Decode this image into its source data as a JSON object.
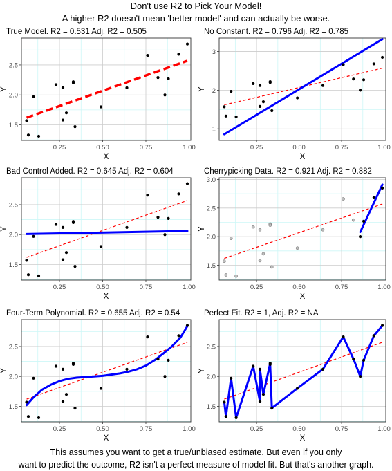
{
  "page": {
    "title_line1": "Don't use R2 to Pick Your Model!",
    "title_line2": "A higher R2 doesn't mean 'better model' and can actually be worse.",
    "caption_line1": "This assumes you want to get a true/unbiased estimate. But even if you only",
    "caption_line2": "want to predict the outcome, R2 isn't a perfect measure of model fit. But that's another graph."
  },
  "colors": {
    "fit_line": "#0000ff",
    "true_line": "#ff0000",
    "points": "#000000",
    "panel_border": "#333333",
    "grid_major": "#cccccc",
    "grid_minor": "#cdf7f7"
  },
  "chart_data": [
    {
      "type": "scatter",
      "title": "True Model. R2 = 0.531 Adj. R2 = 0.505",
      "xlabel": "X",
      "ylabel": "Y",
      "xlim": [
        0.03,
        1.01
      ],
      "ylim": [
        1.24,
        2.95
      ],
      "xticks": [
        "0.25",
        "0.50",
        "0.75",
        "1.00"
      ],
      "yticks": [
        "1.5",
        "2.0",
        "2.5"
      ],
      "points": [
        [
          0.06,
          1.57
        ],
        [
          0.07,
          1.33
        ],
        [
          0.1,
          1.97
        ],
        [
          0.13,
          1.31
        ],
        [
          0.23,
          2.17
        ],
        [
          0.27,
          1.58
        ],
        [
          0.27,
          2.12
        ],
        [
          0.29,
          1.7
        ],
        [
          0.33,
          2.22
        ],
        [
          0.33,
          2.2
        ],
        [
          0.34,
          1.47
        ],
        [
          0.49,
          1.8
        ],
        [
          0.64,
          2.12
        ],
        [
          0.76,
          2.66
        ],
        [
          0.82,
          2.29
        ],
        [
          0.86,
          2.0
        ],
        [
          0.88,
          2.27
        ],
        [
          0.94,
          2.68
        ],
        [
          0.99,
          2.85
        ]
      ],
      "true_line": [
        [
          0.06,
          1.62
        ],
        [
          0.99,
          2.57
        ]
      ],
      "true_style": "thick-dashed",
      "fit_line": []
    },
    {
      "type": "scatter",
      "title": "No Constant. R2 = 0.796 Adj. R2 = 0.785",
      "xlabel": "X",
      "ylabel": "Y",
      "xlim": [
        0.03,
        1.01
      ],
      "ylim": [
        0.7,
        3.35
      ],
      "xticks": [
        "0.25",
        "0.50",
        "0.75",
        "1.00"
      ],
      "yticks": [
        "1",
        "2",
        "3"
      ],
      "points": [
        [
          0.06,
          1.57
        ],
        [
          0.07,
          1.33
        ],
        [
          0.1,
          1.97
        ],
        [
          0.13,
          1.31
        ],
        [
          0.23,
          2.17
        ],
        [
          0.27,
          1.58
        ],
        [
          0.27,
          2.12
        ],
        [
          0.29,
          1.7
        ],
        [
          0.33,
          2.22
        ],
        [
          0.33,
          2.2
        ],
        [
          0.34,
          1.47
        ],
        [
          0.49,
          1.8
        ],
        [
          0.64,
          2.12
        ],
        [
          0.76,
          2.66
        ],
        [
          0.82,
          2.29
        ],
        [
          0.86,
          2.0
        ],
        [
          0.88,
          2.27
        ],
        [
          0.94,
          2.68
        ],
        [
          0.99,
          2.85
        ]
      ],
      "true_line": [
        [
          0.06,
          1.62
        ],
        [
          0.99,
          2.57
        ]
      ],
      "true_style": "dashed",
      "fit_line": [
        [
          0.06,
          0.86
        ],
        [
          0.99,
          3.32
        ]
      ]
    },
    {
      "type": "scatter",
      "title": "Bad Control Added. R2 = 0.645 Adj. R2 = 0.604",
      "xlabel": "X",
      "ylabel": "Y",
      "xlim": [
        0.03,
        1.01
      ],
      "ylim": [
        1.24,
        2.95
      ],
      "xticks": [
        "0.25",
        "0.50",
        "0.75",
        "1.00"
      ],
      "yticks": [
        "1.5",
        "2.0",
        "2.5"
      ],
      "points": [
        [
          0.06,
          1.57
        ],
        [
          0.07,
          1.33
        ],
        [
          0.1,
          1.97
        ],
        [
          0.13,
          1.31
        ],
        [
          0.23,
          2.17
        ],
        [
          0.27,
          1.58
        ],
        [
          0.27,
          2.12
        ],
        [
          0.29,
          1.7
        ],
        [
          0.33,
          2.22
        ],
        [
          0.33,
          2.2
        ],
        [
          0.34,
          1.47
        ],
        [
          0.49,
          1.8
        ],
        [
          0.64,
          2.12
        ],
        [
          0.76,
          2.66
        ],
        [
          0.82,
          2.29
        ],
        [
          0.86,
          2.0
        ],
        [
          0.88,
          2.27
        ],
        [
          0.94,
          2.68
        ],
        [
          0.99,
          2.85
        ]
      ],
      "true_line": [
        [
          0.06,
          1.62
        ],
        [
          0.99,
          2.57
        ]
      ],
      "true_style": "dashed",
      "fit_line": [
        [
          0.06,
          2.01
        ],
        [
          0.99,
          2.06
        ]
      ]
    },
    {
      "type": "scatter",
      "title": "Cherrypicking Data. R2 = 0.921 Adj. R2 = 0.882",
      "xlabel": "X",
      "ylabel": "Y",
      "xlim": [
        0.03,
        1.01
      ],
      "ylim": [
        1.24,
        3.03
      ],
      "xticks": [
        "0.25",
        "0.50",
        "0.75",
        "1.00"
      ],
      "yticks": [
        "1.5",
        "2.0",
        "2.5",
        "3.0"
      ],
      "faded_points": true,
      "highlight_points": [
        [
          0.86,
          2.0
        ],
        [
          0.88,
          2.27
        ],
        [
          0.94,
          2.68
        ],
        [
          0.99,
          2.85
        ]
      ],
      "points": [
        [
          0.06,
          1.57
        ],
        [
          0.07,
          1.33
        ],
        [
          0.1,
          1.97
        ],
        [
          0.13,
          1.31
        ],
        [
          0.23,
          2.17
        ],
        [
          0.27,
          1.58
        ],
        [
          0.27,
          2.12
        ],
        [
          0.29,
          1.7
        ],
        [
          0.33,
          2.22
        ],
        [
          0.33,
          2.2
        ],
        [
          0.34,
          1.47
        ],
        [
          0.49,
          1.8
        ],
        [
          0.64,
          2.12
        ],
        [
          0.76,
          2.66
        ],
        [
          0.82,
          2.29
        ]
      ],
      "true_line": [
        [
          0.06,
          1.62
        ],
        [
          0.99,
          2.57
        ]
      ],
      "true_style": "dashed",
      "fit_line": [
        [
          0.86,
          2.08
        ],
        [
          0.99,
          2.91
        ]
      ]
    },
    {
      "type": "scatter",
      "title": "Four-Term Polynomial. R2 = 0.655 Adj. R2 = 0.54",
      "xlabel": "X",
      "ylabel": "Y",
      "xlim": [
        0.03,
        1.01
      ],
      "ylim": [
        1.24,
        2.95
      ],
      "xticks": [
        "0.25",
        "0.50",
        "0.75",
        "1.00"
      ],
      "yticks": [
        "1.5",
        "2.0",
        "2.5"
      ],
      "points": [
        [
          0.06,
          1.57
        ],
        [
          0.07,
          1.33
        ],
        [
          0.1,
          1.97
        ],
        [
          0.13,
          1.31
        ],
        [
          0.23,
          2.17
        ],
        [
          0.27,
          1.58
        ],
        [
          0.27,
          2.12
        ],
        [
          0.29,
          1.7
        ],
        [
          0.33,
          2.22
        ],
        [
          0.33,
          2.2
        ],
        [
          0.34,
          1.47
        ],
        [
          0.49,
          1.8
        ],
        [
          0.64,
          2.12
        ],
        [
          0.76,
          2.66
        ],
        [
          0.82,
          2.29
        ],
        [
          0.86,
          2.0
        ],
        [
          0.88,
          2.27
        ],
        [
          0.94,
          2.68
        ],
        [
          0.99,
          2.85
        ]
      ],
      "true_line": [
        [
          0.06,
          1.62
        ],
        [
          0.99,
          2.57
        ]
      ],
      "true_style": "dashed",
      "fit_line": [
        [
          0.06,
          1.52
        ],
        [
          0.1,
          1.65
        ],
        [
          0.15,
          1.78
        ],
        [
          0.2,
          1.86
        ],
        [
          0.25,
          1.92
        ],
        [
          0.3,
          1.96
        ],
        [
          0.35,
          1.98
        ],
        [
          0.4,
          1.99
        ],
        [
          0.45,
          2.0
        ],
        [
          0.5,
          2.01
        ],
        [
          0.55,
          2.03
        ],
        [
          0.6,
          2.05
        ],
        [
          0.65,
          2.08
        ],
        [
          0.7,
          2.12
        ],
        [
          0.75,
          2.18
        ],
        [
          0.8,
          2.27
        ],
        [
          0.85,
          2.38
        ],
        [
          0.9,
          2.5
        ],
        [
          0.95,
          2.65
        ],
        [
          0.99,
          2.84
        ]
      ]
    },
    {
      "type": "scatter",
      "title": "Perfect Fit. R2 = 1, Adj. R2 = NA",
      "xlabel": "X",
      "ylabel": "Y",
      "xlim": [
        0.03,
        1.01
      ],
      "ylim": [
        1.24,
        2.95
      ],
      "xticks": [
        "0.25",
        "0.50",
        "0.75",
        "1.00"
      ],
      "yticks": [
        "1.5",
        "2.0",
        "2.5"
      ],
      "points": [
        [
          0.06,
          1.57
        ],
        [
          0.07,
          1.33
        ],
        [
          0.1,
          1.97
        ],
        [
          0.13,
          1.31
        ],
        [
          0.23,
          2.17
        ],
        [
          0.27,
          1.58
        ],
        [
          0.27,
          2.12
        ],
        [
          0.29,
          1.7
        ],
        [
          0.33,
          2.22
        ],
        [
          0.33,
          2.2
        ],
        [
          0.34,
          1.47
        ],
        [
          0.49,
          1.8
        ],
        [
          0.64,
          2.12
        ],
        [
          0.76,
          2.66
        ],
        [
          0.82,
          2.29
        ],
        [
          0.86,
          2.0
        ],
        [
          0.88,
          2.27
        ],
        [
          0.94,
          2.68
        ],
        [
          0.99,
          2.85
        ]
      ],
      "true_line": [
        [
          0.06,
          1.62
        ],
        [
          0.99,
          2.57
        ]
      ],
      "true_style": "dashed",
      "fit_line": [
        [
          0.06,
          1.57
        ],
        [
          0.07,
          1.33
        ],
        [
          0.1,
          1.97
        ],
        [
          0.13,
          1.31
        ],
        [
          0.23,
          2.17
        ],
        [
          0.27,
          1.58
        ],
        [
          0.27,
          2.12
        ],
        [
          0.29,
          1.7
        ],
        [
          0.33,
          2.22
        ],
        [
          0.33,
          2.2
        ],
        [
          0.34,
          1.47
        ],
        [
          0.49,
          1.8
        ],
        [
          0.64,
          2.12
        ],
        [
          0.76,
          2.66
        ],
        [
          0.82,
          2.29
        ],
        [
          0.86,
          2.0
        ],
        [
          0.88,
          2.27
        ],
        [
          0.94,
          2.68
        ],
        [
          0.99,
          2.85
        ]
      ]
    }
  ]
}
